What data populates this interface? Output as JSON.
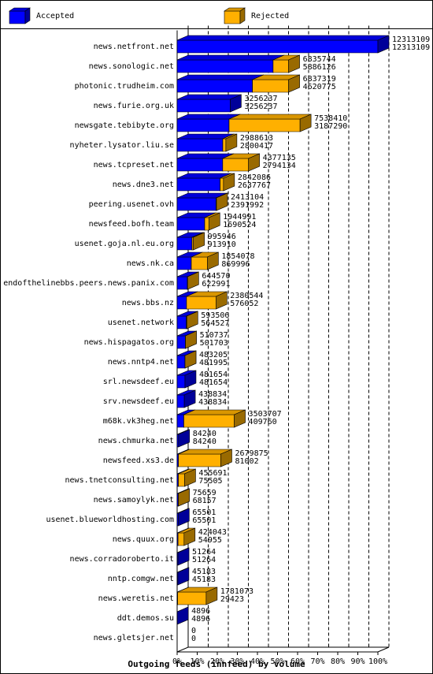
{
  "chart_data": {
    "type": "bar3d-stacked-horizontal",
    "title": "Outgoing feeds (innfeed) by volume",
    "legend": [
      {
        "name": "Accepted",
        "color": "#0000ff"
      },
      {
        "name": "Rejected",
        "color": "#ffb000"
      }
    ],
    "categories": [
      "news.netfront.net",
      "news.sonologic.net",
      "photonic.trudheim.com",
      "news.furie.org.uk",
      "newsgate.tebibyte.org",
      "nyheter.lysator.liu.se",
      "news.tcpreset.net",
      "news.dne3.net",
      "peering.usenet.ovh",
      "newsfeed.bofh.team",
      "usenet.goja.nl.eu.org",
      "news.nk.ca",
      "endofthelinebbs.peers.news.panix.com",
      "news.bbs.nz",
      "usenet.network",
      "news.hispagatos.org",
      "news.nntp4.net",
      "srl.newsdeef.eu",
      "srv.newsdeef.eu",
      "m68k.vk3heg.net",
      "news.chmurka.net",
      "newsfeed.xs3.de",
      "news.tnetconsulting.net",
      "news.samoylyk.net",
      "usenet.blueworldhosting.com",
      "news.quux.org",
      "news.corradoroberto.it",
      "nntp.comgw.net",
      "news.weretis.net",
      "ddt.demos.su",
      "news.gletsjer.net"
    ],
    "totals": [
      12313109,
      6835744,
      6837319,
      3256237,
      7538410,
      2988613,
      4377135,
      2842086,
      2413104,
      1944991,
      995946,
      1854078,
      644570,
      2380544,
      593506,
      510737,
      483205,
      481654,
      438834,
      3503707,
      84240,
      2679875,
      455691,
      75659,
      65501,
      424043,
      51264,
      45183,
      1781073,
      4896,
      0
    ],
    "accepted": [
      12313109,
      5886126,
      4620775,
      3256237,
      3187290,
      2800417,
      2794134,
      2637767,
      2391992,
      1690524,
      913910,
      869996,
      622991,
      576052,
      564527,
      501703,
      481995,
      481654,
      438834,
      409760,
      84240,
      81002,
      75505,
      68157,
      65501,
      54955,
      51264,
      45183,
      29423,
      4896,
      0
    ],
    "xlim": [
      0,
      12313109
    ],
    "xticks": [
      {
        "value": 0,
        "label": "0%"
      },
      {
        "value": 1231310.9,
        "label": "10%"
      },
      {
        "value": 2462621.8,
        "label": "20%"
      },
      {
        "value": 3693932.7,
        "label": "30%"
      },
      {
        "value": 4925243.6,
        "label": "40%"
      },
      {
        "value": 6156554.5,
        "label": "50%"
      },
      {
        "value": 7387865.4,
        "label": "60%"
      },
      {
        "value": 8619176.3,
        "label": "70%"
      },
      {
        "value": 9850487.2,
        "label": "80%"
      },
      {
        "value": 11081798.1,
        "label": "90%"
      },
      {
        "value": 12313109,
        "label": "100%"
      }
    ],
    "grid": true
  }
}
